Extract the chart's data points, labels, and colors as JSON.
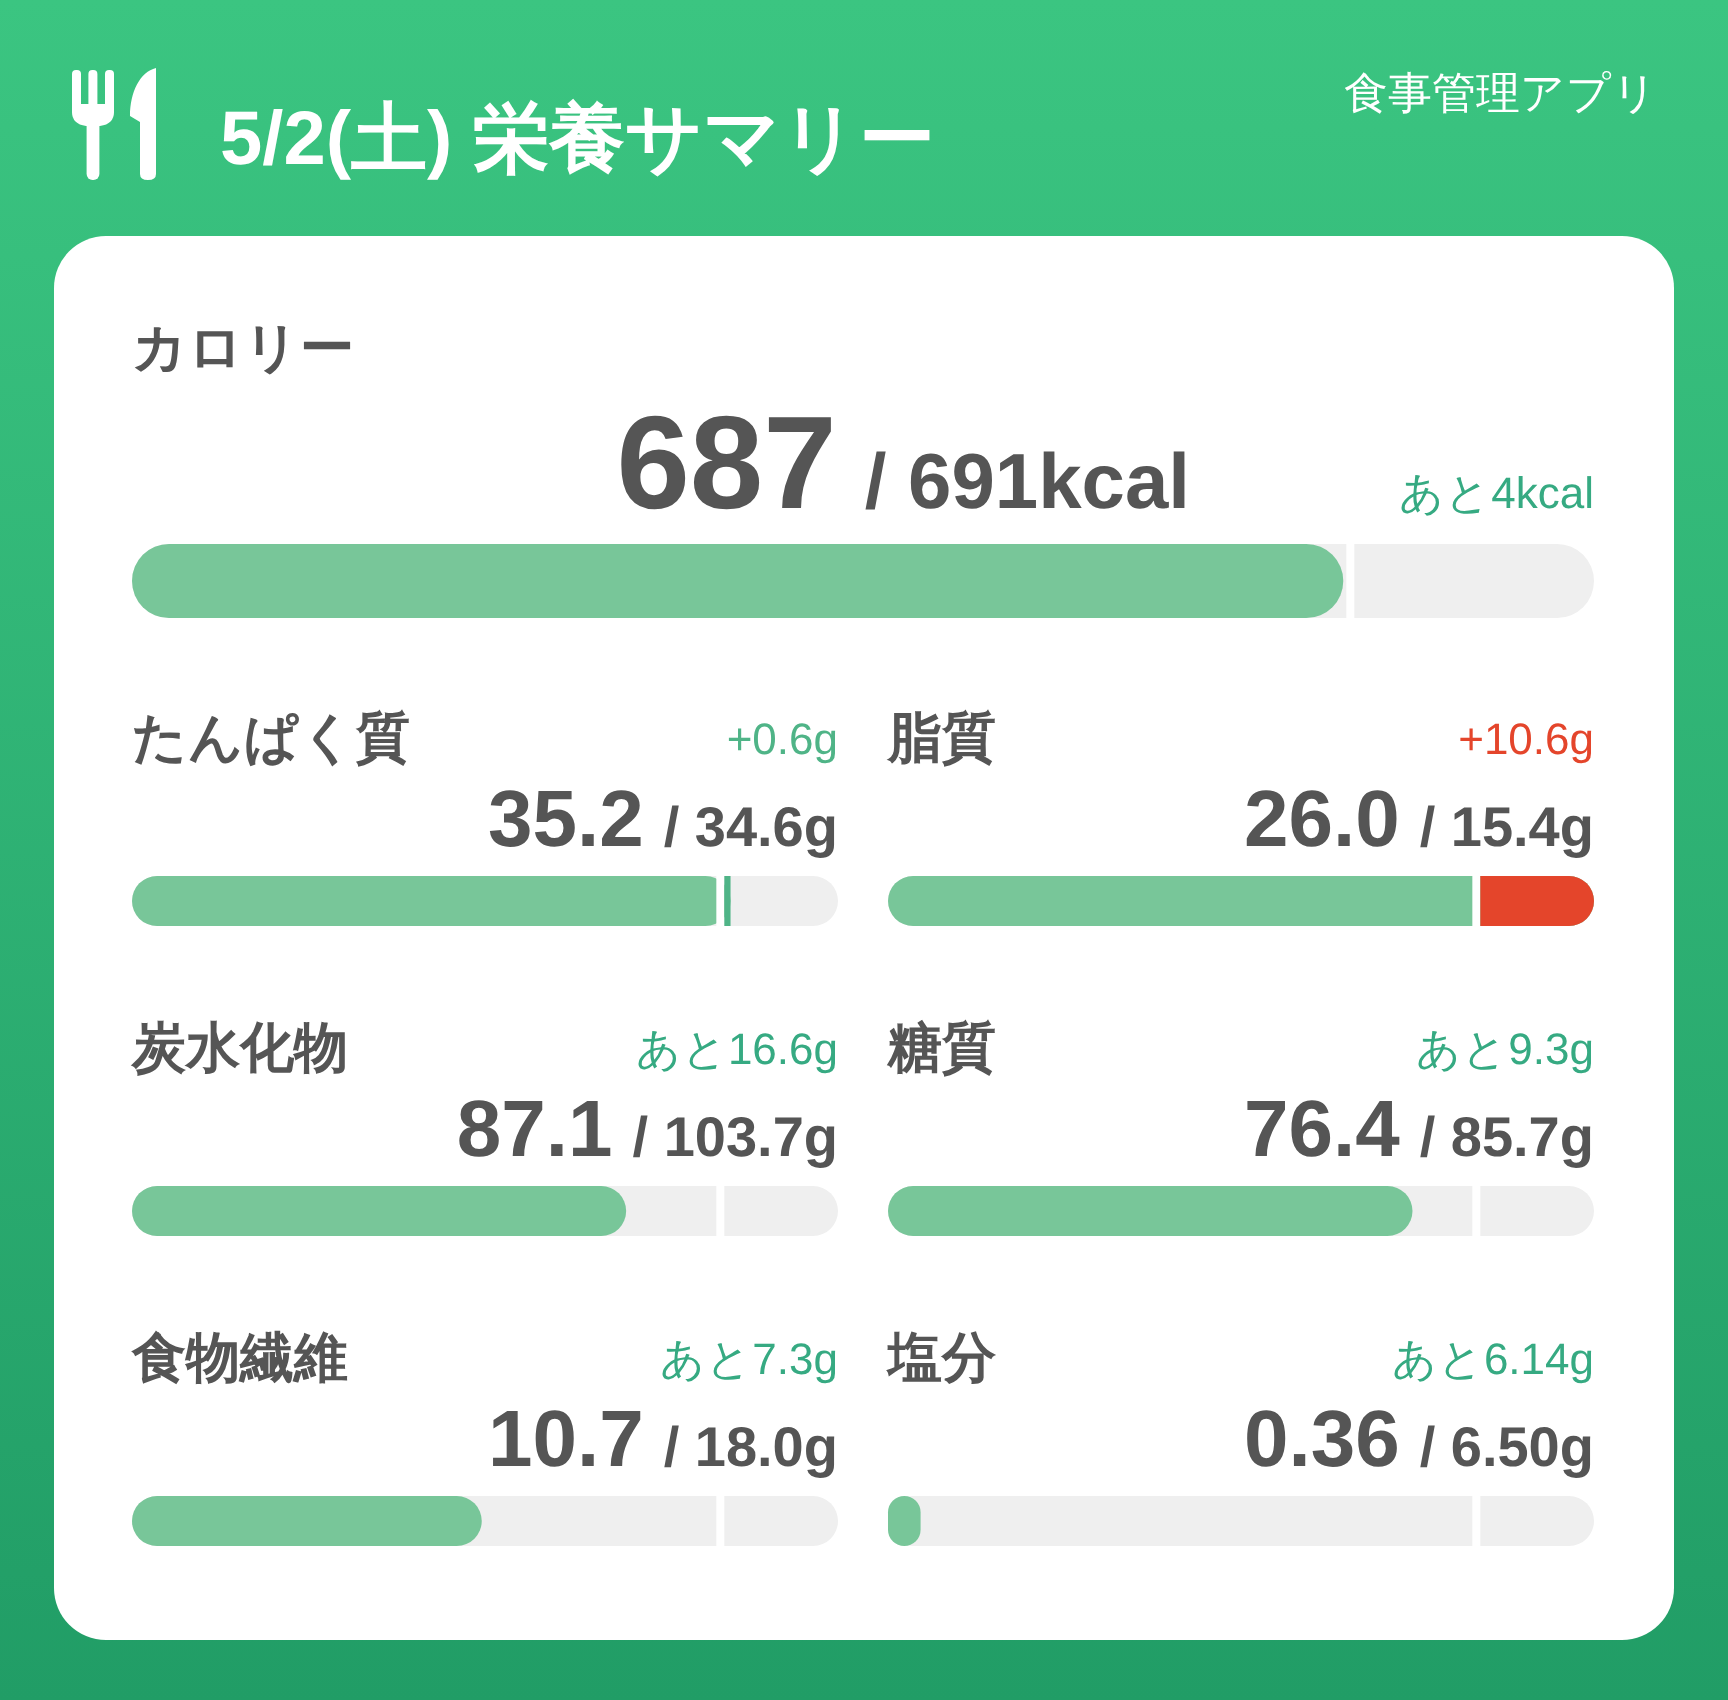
{
  "chart_data": [
    {
      "type": "other",
      "title": "5/2(土) 栄養サマリー",
      "annotations": [
        "食事管理アプリ"
      ]
    },
    {
      "type": "other",
      "title": "カロリー",
      "values": [
        687,
        691
      ],
      "value_labels": [
        "687",
        "/ 691kcal"
      ],
      "colors": [
        "#78c699",
        "#ffffff"
      ],
      "annotations": [
        "あと4kcal"
      ]
    },
    {
      "type": "other",
      "title": "たんぱく質",
      "values": [
        35.2,
        34.6,
        0.6
      ],
      "value_labels": [
        "35.2",
        "/ 34.6g",
        "+0.6g"
      ],
      "colors": [
        "#78c699",
        "#ffffff",
        "#4fb487"
      ]
    },
    {
      "type": "other",
      "title": "脂質",
      "values": [
        26.0,
        15.4,
        10.6
      ],
      "value_labels": [
        "26.0",
        "/ 15.4g",
        "+10.6g"
      ],
      "colors": [
        "#78c699",
        "#ffffff",
        "#e4452b"
      ]
    },
    {
      "type": "other",
      "title": "炭水化物",
      "values": [
        87.1,
        103.7
      ],
      "value_labels": [
        "87.1",
        "/ 103.7g"
      ],
      "colors": [
        "#78c699",
        "#ffffff"
      ],
      "annotations": [
        "あと16.6g"
      ]
    },
    {
      "type": "other",
      "title": "糖質",
      "values": [
        76.4,
        85.7
      ],
      "value_labels": [
        "76.4",
        "/ 85.7g"
      ],
      "colors": [
        "#78c699",
        "#ffffff"
      ],
      "annotations": [
        "あと9.3g"
      ]
    },
    {
      "type": "other",
      "title": "食物繊維",
      "values": [
        10.7,
        18.0
      ],
      "value_labels": [
        "10.7",
        "/ 18.0g"
      ],
      "colors": [
        "#78c699",
        "#ffffff"
      ],
      "annotations": [
        "あと7.3g"
      ]
    },
    {
      "type": "other",
      "title": "塩分",
      "values": [
        0.36,
        6.5
      ],
      "value_labels": [
        "0.36",
        "/ 6.50g"
      ],
      "colors": [
        "#78c699",
        "#ffffff"
      ],
      "annotations": [
        "あと6.14g"
      ]
    }
  ]
}
